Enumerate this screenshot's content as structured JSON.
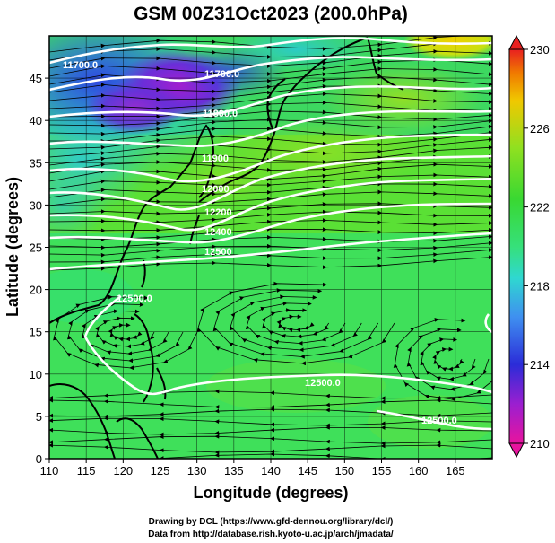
{
  "title": "GSM 00Z31Oct2023 (200.0hPa)",
  "xlabel": "Longitude (degrees)",
  "ylabel": "Latitude  (degrees)",
  "x_ticks": [
    110,
    115,
    120,
    125,
    130,
    135,
    140,
    145,
    150,
    155,
    160,
    165
  ],
  "y_ticks": [
    0,
    5,
    10,
    15,
    20,
    25,
    30,
    35,
    40,
    45
  ],
  "colorbar": {
    "ticks": [
      210,
      214,
      218,
      222,
      226,
      230
    ],
    "min": 210,
    "max": 230,
    "colors": [
      "#e8149e",
      "#9b1fd0",
      "#2b2cd8",
      "#3f8ff0",
      "#2fd8d0",
      "#36e07a",
      "#39d832",
      "#90e020",
      "#f0c800",
      "#f07a00",
      "#e82020"
    ]
  },
  "contour_labels": [
    "11700.0",
    "11700.0",
    "11800.0",
    "11900",
    "12000.",
    "12200",
    "12400",
    "12500",
    "12500.0",
    "12500.0",
    "12500.0"
  ],
  "credits": {
    "line1": "Drawing by DCL (https://www.gfd-dennou.org/library/dcl/)",
    "line2": "Data from http://database.rish.kyoto-u.ac.jp/arch/jmadata/"
  },
  "colors": {
    "contour": "#ffffff",
    "streamline": "#000000",
    "coast": "#000000"
  }
}
